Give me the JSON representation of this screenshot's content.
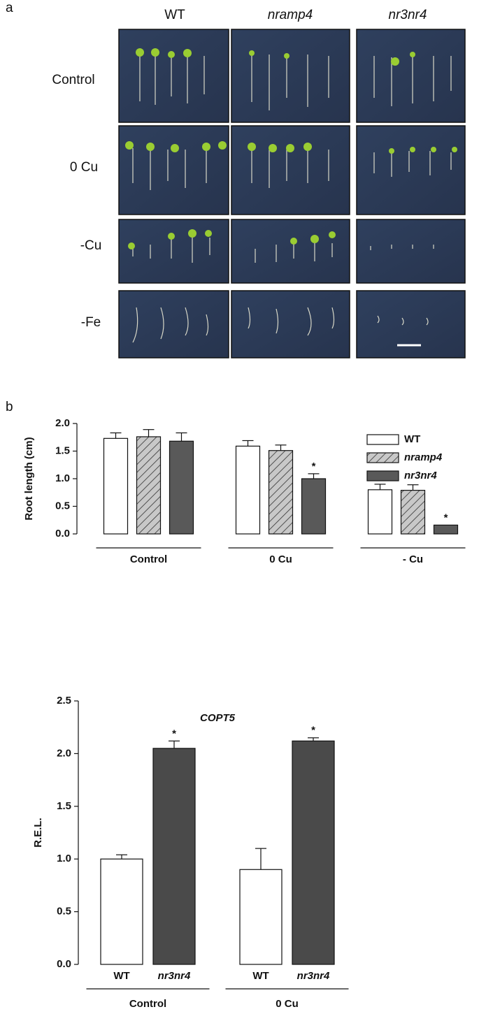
{
  "panel_a": {
    "label": "a",
    "columns": [
      "WT",
      "nramp4",
      "nr3nr4"
    ],
    "rows": [
      "Control",
      "0 Cu",
      "-Cu",
      "-Fe"
    ]
  },
  "panel_b": {
    "label": "b"
  },
  "chart_data": [
    {
      "type": "bar",
      "y_label": "Root length (cm)",
      "categories": [
        "Control",
        "0 Cu",
        "- Cu"
      ],
      "series": [
        {
          "name": "WT",
          "color": "#ffffff",
          "hatch": false,
          "italic": false,
          "values": [
            1.73,
            1.59,
            0.8
          ],
          "errors": [
            0.1,
            0.1,
            0.1
          ],
          "significance": [
            null,
            null,
            null
          ]
        },
        {
          "name": "nramp4",
          "color": "#c8c8c8",
          "hatch": true,
          "italic": true,
          "values": [
            1.76,
            1.51,
            0.79
          ],
          "errors": [
            0.13,
            0.1,
            0.1
          ],
          "significance": [
            null,
            null,
            null
          ]
        },
        {
          "name": "nr3nr4",
          "color": "#595959",
          "hatch": false,
          "italic": true,
          "values": [
            1.68,
            1.0,
            0.16
          ],
          "errors": [
            0.15,
            0.09,
            0.0
          ],
          "significance": [
            null,
            "*",
            "*"
          ]
        }
      ],
      "ylim": [
        0,
        2.0
      ],
      "yticks": [
        {
          "value": 0,
          "label": "0.0"
        },
        {
          "value": 0.5,
          "label": "0.5"
        },
        {
          "value": 1,
          "label": "1.0"
        },
        {
          "value": 1.5,
          "label": "1.5"
        },
        {
          "value": 2,
          "label": "2.0"
        }
      ],
      "legend": "upper right"
    },
    {
      "type": "bar",
      "title": "COPT5",
      "y_label": "R.E.L.",
      "categories": [
        "Control",
        "0 Cu"
      ],
      "bar_labels": true,
      "series": [
        {
          "name": "WT",
          "color": "#ffffff",
          "hatch": false,
          "italic": false,
          "values": [
            1.0,
            0.9
          ],
          "errors": [
            0.04,
            0.2
          ],
          "significance": [
            null,
            null
          ]
        },
        {
          "name": "nr3nr4",
          "color": "#4a4a4a",
          "hatch": false,
          "italic": true,
          "values": [
            2.05,
            2.12
          ],
          "errors": [
            0.07,
            0.03
          ],
          "significance": [
            "*",
            "*"
          ]
        }
      ],
      "ylim": [
        0,
        2.5
      ],
      "yticks": [
        {
          "value": 0,
          "label": "0.0"
        },
        {
          "value": 0.5,
          "label": "0.5"
        },
        {
          "value": 1,
          "label": "1.0"
        },
        {
          "value": 1.5,
          "label": "1.5"
        },
        {
          "value": 2,
          "label": "2.0"
        },
        {
          "value": 2.5,
          "label": "2.5"
        }
      ]
    }
  ]
}
